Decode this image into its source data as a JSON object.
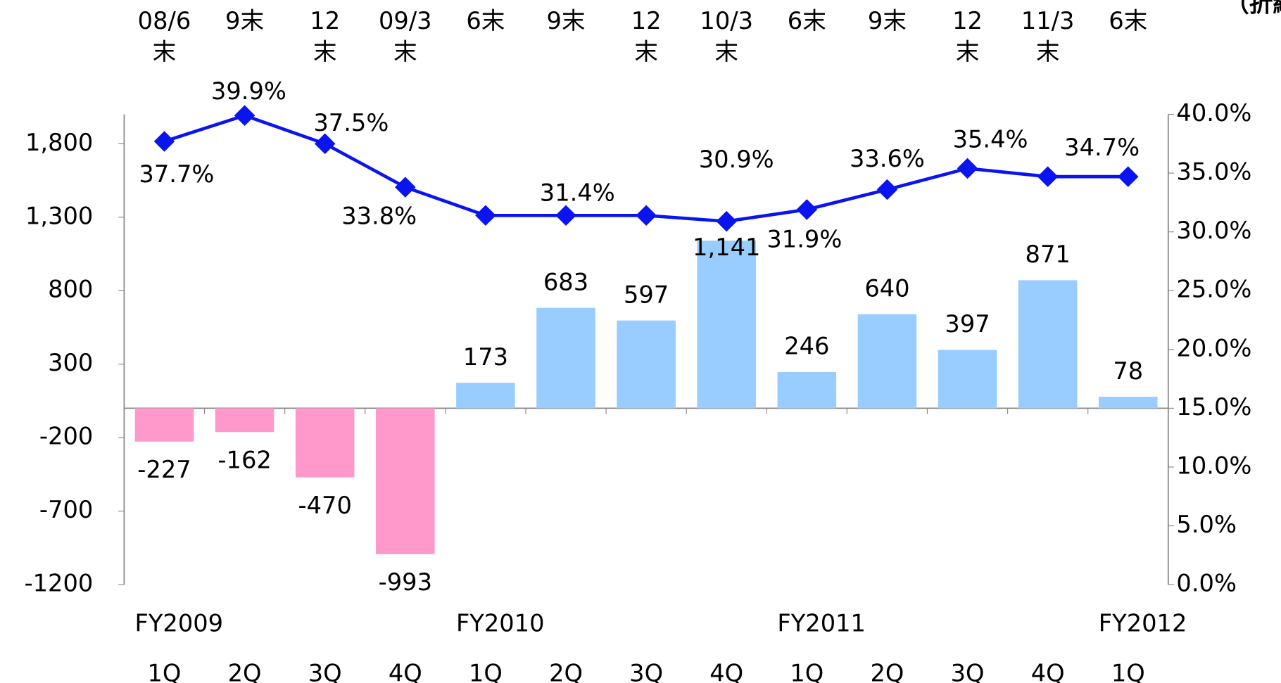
{
  "chart_data": {
    "type": "bar_line",
    "axis_note": "（折線",
    "categories": [
      "1Q",
      "2Q",
      "3Q",
      "4Q",
      "1Q",
      "2Q",
      "3Q",
      "4Q",
      "1Q",
      "2Q",
      "3Q",
      "4Q",
      "1Q"
    ],
    "fiscal_years": [
      "FY2009",
      null,
      null,
      null,
      "FY2010",
      null,
      null,
      null,
      "FY2011",
      null,
      null,
      null,
      "FY2012"
    ],
    "period_labels": [
      [
        "08/6",
        "末"
      ],
      [
        "9末"
      ],
      [
        "12",
        "末"
      ],
      [
        "09/3",
        "末"
      ],
      [
        "6末"
      ],
      [
        "9末"
      ],
      [
        "12",
        "末"
      ],
      [
        "10/3",
        "末"
      ],
      [
        "6末"
      ],
      [
        "9末"
      ],
      [
        "12",
        "末"
      ],
      [
        "11/3",
        "末"
      ],
      [
        "6末"
      ]
    ],
    "series": [
      {
        "type": "bar",
        "positive_color": "#99ccff",
        "negative_color": "#ff99cc",
        "label_negative_color": "#ff0000",
        "values": [
          -227,
          -162,
          -470,
          -993,
          173,
          683,
          597,
          1141,
          246,
          640,
          397,
          871,
          78
        ],
        "value_labels": [
          "-227",
          "-162",
          "-470",
          "-993",
          "173",
          "683",
          "597",
          "1,141",
          "246",
          "640",
          "397",
          "871",
          "78"
        ]
      },
      {
        "type": "line",
        "axis": "y2",
        "color": "#0a14f0",
        "values": [
          37.7,
          39.9,
          37.5,
          33.8,
          31.4,
          31.4,
          31.4,
          30.9,
          31.9,
          33.6,
          35.4,
          34.7,
          34.7
        ],
        "value_labels": [
          "37.7%",
          "39.9%",
          "37.5%",
          "33.8%",
          null,
          "31.4%",
          null,
          "30.9%",
          "31.9%",
          "33.6%",
          "35.4%",
          null,
          "34.7%"
        ]
      }
    ],
    "ylim": [
      -1200,
      2000
    ],
    "yticks": [
      -1200,
      -700,
      -200,
      300,
      {
        "value": 800,
        "label": "800"
      },
      {
        "value": 1300,
        "label": "1,300"
      },
      {
        "value": 1800,
        "label": "1,800"
      }
    ],
    "negative_tick_color": "#ff0000",
    "y2lim": [
      0,
      40
    ],
    "y2ticks": [
      {
        "value": 0,
        "label": "0.0%"
      },
      {
        "value": 5,
        "label": "5.0%"
      },
      {
        "value": 10,
        "label": "10.0%"
      },
      {
        "value": 15,
        "label": "15.0%"
      },
      {
        "value": 20,
        "label": "20.0%"
      },
      {
        "value": 25,
        "label": "25.0%"
      },
      {
        "value": 30,
        "label": "30.0%"
      },
      {
        "value": 35,
        "label": "35.0%"
      },
      {
        "value": 40,
        "label": "40.0%"
      }
    ]
  }
}
